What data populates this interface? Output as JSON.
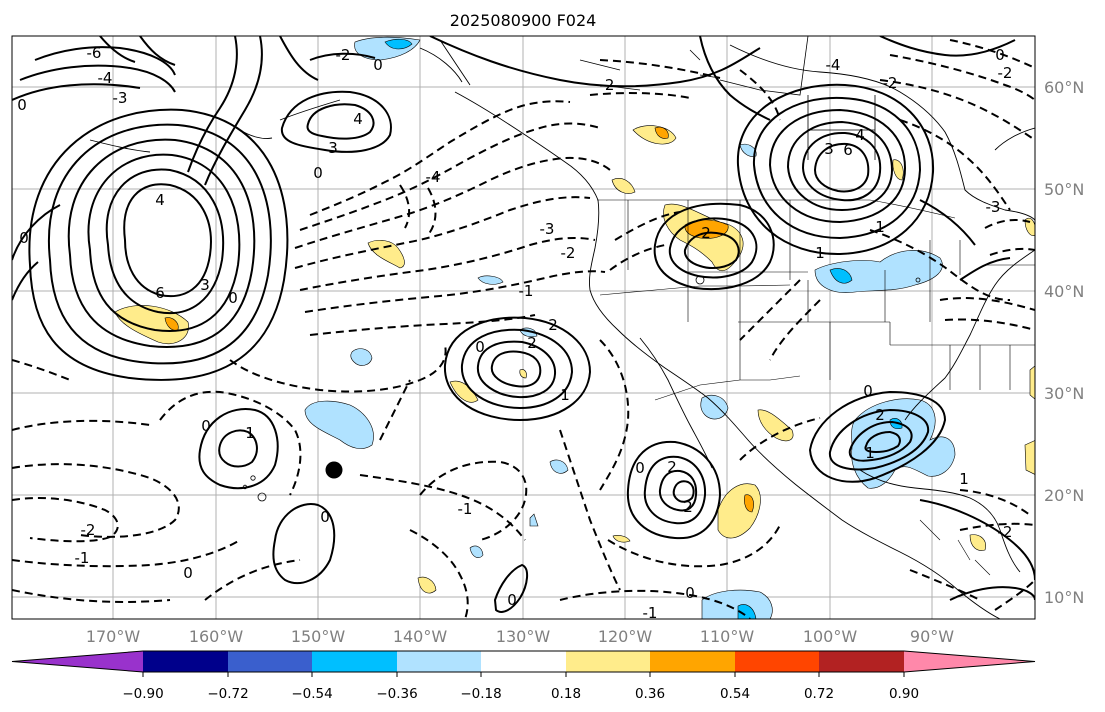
{
  "map": {
    "title": "2025080900 F024",
    "longitude_labels": [
      "170°W",
      "160°W",
      "150°W",
      "140°W",
      "130°W",
      "120°W",
      "110°W",
      "100°W",
      "90°W"
    ],
    "latitude_labels": [
      "60°N",
      "50°N",
      "40°N",
      "30°N",
      "20°N",
      "10°N"
    ],
    "grid": true,
    "contour_labels": [
      "-6",
      "-4",
      "-3",
      "-2",
      "-1",
      "0",
      "1",
      "2",
      "3",
      "4",
      "6"
    ],
    "colorbar": {
      "ticks": [
        "−0.90",
        "−0.72",
        "−0.54",
        "−0.36",
        "−0.18",
        "0.18",
        "0.36",
        "0.54",
        "0.72",
        "0.90"
      ],
      "colors": [
        "#9932cc",
        "#00008b",
        "#3a5fcd",
        "#00bfff",
        "#b0e2ff",
        "#ffffff",
        "#ffec8b",
        "#ffa500",
        "#ff4500",
        "#b22222",
        "#ff88aa"
      ],
      "extend": "both"
    },
    "marker": "filled black circle"
  }
}
